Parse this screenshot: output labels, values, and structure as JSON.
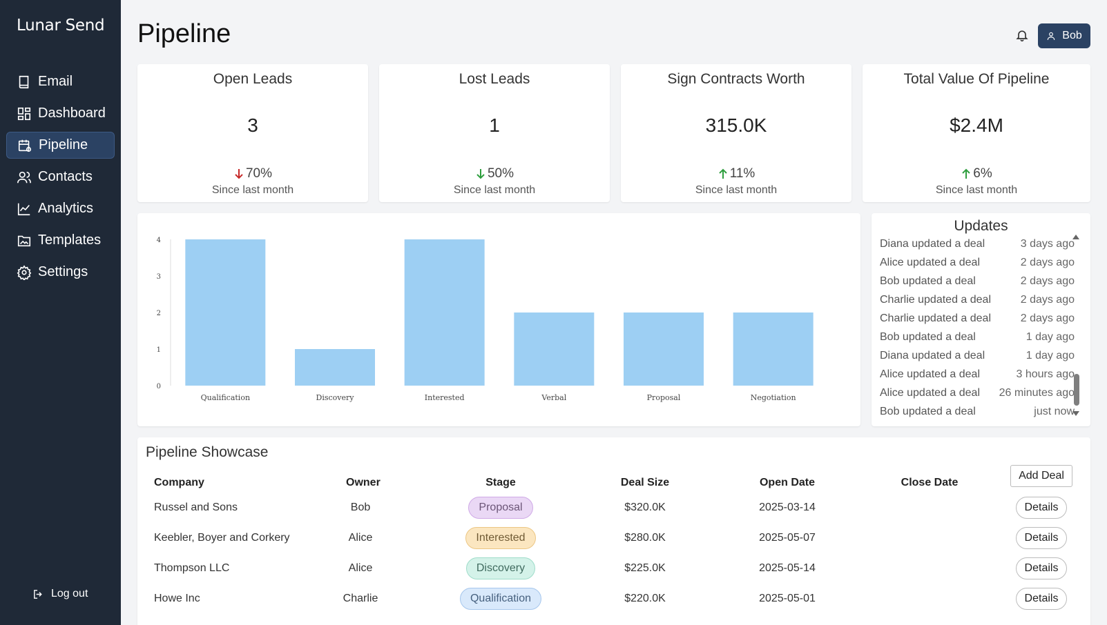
{
  "app": {
    "name": "Lunar Send"
  },
  "sidebar": {
    "items": [
      {
        "label": "Email",
        "icon": "book-icon"
      },
      {
        "label": "Dashboard",
        "icon": "grid-icon"
      },
      {
        "label": "Pipeline",
        "icon": "calendar-gear-icon",
        "active": true
      },
      {
        "label": "Contacts",
        "icon": "users-icon"
      },
      {
        "label": "Analytics",
        "icon": "line-chart-icon"
      },
      {
        "label": "Templates",
        "icon": "folder-image-icon"
      },
      {
        "label": "Settings",
        "icon": "gear-icon"
      }
    ],
    "logout_label": "Log out"
  },
  "header": {
    "title": "Pipeline",
    "user_name": "Bob"
  },
  "stats": [
    {
      "title": "Open Leads",
      "value": "3",
      "change": "70%",
      "direction": "down",
      "change_color": "#c62828",
      "sub": "Since last month"
    },
    {
      "title": "Lost Leads",
      "value": "1",
      "change": "50%",
      "direction": "down",
      "change_color": "#2e9e3e",
      "sub": "Since last month"
    },
    {
      "title": "Sign Contracts Worth",
      "value": "315.0K",
      "change": "11%",
      "direction": "up",
      "change_color": "#2e9e3e",
      "sub": "Since last month"
    },
    {
      "title": "Total Value Of Pipeline",
      "value": "$2.4M",
      "change": "6%",
      "direction": "up",
      "change_color": "#2e9e3e",
      "sub": "Since last month"
    }
  ],
  "chart_data": {
    "type": "bar",
    "categories": [
      "Qualification",
      "Discovery",
      "Interested",
      "Verbal",
      "Proposal",
      "Negotiation"
    ],
    "values": [
      4,
      1,
      4,
      2,
      2,
      2
    ],
    "ylim": [
      0,
      4
    ],
    "yticks": [
      0,
      1,
      2,
      3,
      4
    ],
    "bar_color": "#9dcff3",
    "grid": false
  },
  "updates": {
    "title": "Updates",
    "items": [
      {
        "text": "Diana updated a deal",
        "time": "3 days ago"
      },
      {
        "text": "Alice updated a deal",
        "time": "2 days ago"
      },
      {
        "text": "Bob updated a deal",
        "time": "2 days ago"
      },
      {
        "text": "Charlie updated a deal",
        "time": "2 days ago"
      },
      {
        "text": "Charlie updated a deal",
        "time": "2 days ago"
      },
      {
        "text": "Bob updated a deal",
        "time": "1 day ago"
      },
      {
        "text": "Diana updated a deal",
        "time": "1 day ago"
      },
      {
        "text": "Alice updated a deal",
        "time": "3 hours ago"
      },
      {
        "text": "Alice updated a deal",
        "time": "26 minutes ago"
      },
      {
        "text": "Bob updated a deal",
        "time": "just now"
      }
    ]
  },
  "table": {
    "title": "Pipeline Showcase",
    "headers": [
      "Company",
      "Owner",
      "Stage",
      "Deal Size",
      "Open Date",
      "Close Date"
    ],
    "add_label": "Add Deal",
    "details_label": "Details",
    "rows": [
      {
        "company": "Russel and Sons",
        "owner": "Bob",
        "stage": "Proposal",
        "deal_size": "$320.0K",
        "open_date": "2025-03-14",
        "close_date": ""
      },
      {
        "company": "Keebler, Boyer and Corkery",
        "owner": "Alice",
        "stage": "Interested",
        "deal_size": "$280.0K",
        "open_date": "2025-05-07",
        "close_date": ""
      },
      {
        "company": "Thompson LLC",
        "owner": "Alice",
        "stage": "Discovery",
        "deal_size": "$225.0K",
        "open_date": "2025-05-14",
        "close_date": ""
      },
      {
        "company": "Howe Inc",
        "owner": "Charlie",
        "stage": "Qualification",
        "deal_size": "$220.0K",
        "open_date": "2025-05-01",
        "close_date": ""
      }
    ]
  }
}
